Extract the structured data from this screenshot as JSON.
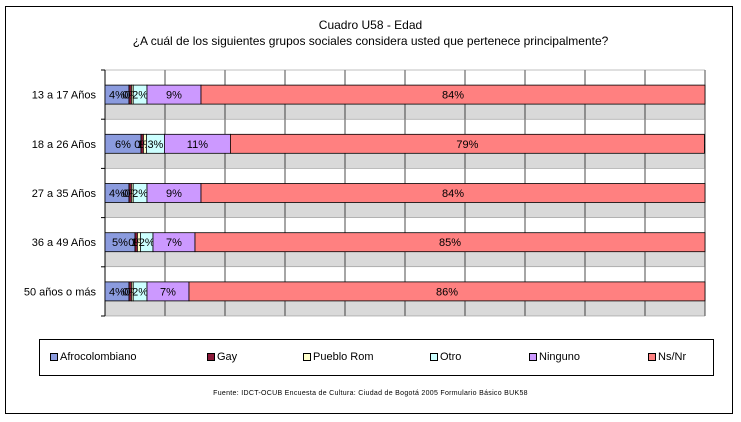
{
  "chart_data": {
    "type": "bar",
    "stacked": true,
    "orientation": "horizontal",
    "title": "Cuadro U58 - Edad",
    "subtitle": "¿A cuál de los siguientes grupos sociales considera usted que pertenece principalmente?",
    "categories": [
      "13 a 17 Años",
      "18 a 26 Años",
      "27 a 35 Años",
      "36 a 49 Años",
      "50 años o más"
    ],
    "series": [
      {
        "name": "Afrocolombiano",
        "color": "#8b9bde",
        "values": [
          4,
          6,
          4,
          5,
          4
        ],
        "labels": [
          "4%",
          "6%",
          "4%",
          "5%",
          "4%"
        ]
      },
      {
        "name": "Gay",
        "color": "#8b1a3a",
        "values": [
          0.4,
          0.4,
          0.4,
          0.4,
          0.4
        ],
        "labels": [
          "0%",
          "0%",
          "0%",
          "0%",
          "0%"
        ]
      },
      {
        "name": "Pueblo Rom",
        "color": "#ffffcc",
        "values": [
          0.3,
          0.5,
          0.3,
          0.5,
          0.3
        ],
        "labels": [
          "0%",
          "1%",
          "0%",
          "1%",
          "0%"
        ]
      },
      {
        "name": "Otro",
        "color": "#ccffff",
        "values": [
          2.3,
          3,
          2.3,
          2.1,
          2.3
        ],
        "labels": [
          "2%",
          "3%",
          "2%",
          "2%",
          "2%"
        ]
      },
      {
        "name": "Ninguno",
        "color": "#cc99ff",
        "values": [
          9,
          11,
          9,
          7,
          7
        ],
        "labels": [
          "9%",
          "11%",
          "9%",
          "7%",
          "7%"
        ]
      },
      {
        "name": "Ns/Nr",
        "color": "#ff8080",
        "values": [
          84,
          79,
          84,
          85,
          86
        ],
        "labels": [
          "84%",
          "79%",
          "84%",
          "85%",
          "86%"
        ]
      }
    ],
    "xlim": [
      0,
      100
    ],
    "grid": true,
    "legend_position": "bottom"
  },
  "source": "Fuente: IDCT-OCUB Encuesta de Cultura: Ciudad de Bogotá 2005 Formulario Básico BUK58"
}
